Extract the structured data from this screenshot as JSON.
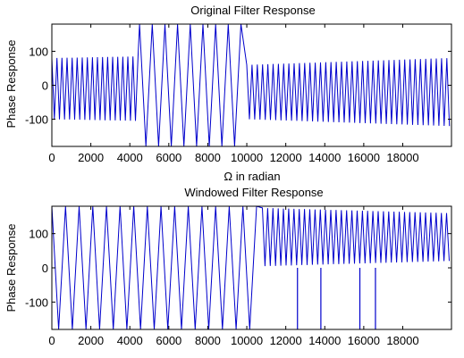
{
  "figure": {
    "background": "#ffffff",
    "line_color": "#0000cc"
  },
  "chart_data": [
    {
      "type": "line",
      "title": "Original Filter Response",
      "xlabel": "Ω in radian",
      "ylabel": "Phase Response",
      "xlim": [
        0,
        20500
      ],
      "ylim": [
        -180,
        180
      ],
      "xticks": [
        0,
        2000,
        4000,
        6000,
        8000,
        10000,
        12000,
        14000,
        16000,
        18000
      ],
      "xtick_labels": [
        "0",
        "2000",
        "4000",
        "6000",
        "8000",
        "10000",
        "12000",
        "14000",
        "16000",
        "18000"
      ],
      "yticks": [
        100,
        0,
        -100
      ],
      "ytick_labels": [
        "100",
        "0",
        "-100"
      ],
      "grid": false,
      "series": [
        {
          "color": "#0000cc",
          "regions": [
            {
              "x_start": 0,
              "x_end": 4500,
              "period": 260,
              "center": -10,
              "amp_start": 90,
              "amp_end": 95
            },
            {
              "x_start": 4500,
              "x_end": 10000,
              "period": 650,
              "center": 0,
              "amp_start": 180,
              "amp_end": 180
            },
            {
              "x_start": 10000,
              "x_end": 20500,
              "period": 270,
              "center": -20,
              "amp_start": 80,
              "amp_end": 100
            }
          ]
        }
      ]
    },
    {
      "type": "line",
      "title": "Windowed Filter Response",
      "xlabel": "",
      "ylabel": "Phase Response",
      "xlim": [
        0,
        20500
      ],
      "ylim": [
        -180,
        180
      ],
      "xticks": [
        0,
        2000,
        4000,
        6000,
        8000,
        10000,
        12000,
        14000,
        16000,
        18000
      ],
      "xtick_labels": [
        "0",
        "2000",
        "4000",
        "6000",
        "8000",
        "10000",
        "12000",
        "14000",
        "16000",
        "18000"
      ],
      "yticks": [
        100,
        0,
        -100
      ],
      "ytick_labels": [
        "100",
        "0",
        "-100"
      ],
      "grid": false,
      "series": [
        {
          "color": "#0000cc",
          "regions": [
            {
              "x_start": 0,
              "x_end": 10800,
              "period": 700,
              "center": 0,
              "amp_start": 180,
              "amp_end": 180
            },
            {
              "x_start": 10800,
              "x_end": 20500,
              "period": 270,
              "center": 90,
              "amp_start": 85,
              "amp_end": 70
            }
          ],
          "spikes": [
            {
              "x": 12600,
              "y": -180
            },
            {
              "x": 13800,
              "y": -180
            },
            {
              "x": 15800,
              "y": -180
            },
            {
              "x": 16600,
              "y": -180
            }
          ]
        }
      ]
    }
  ]
}
